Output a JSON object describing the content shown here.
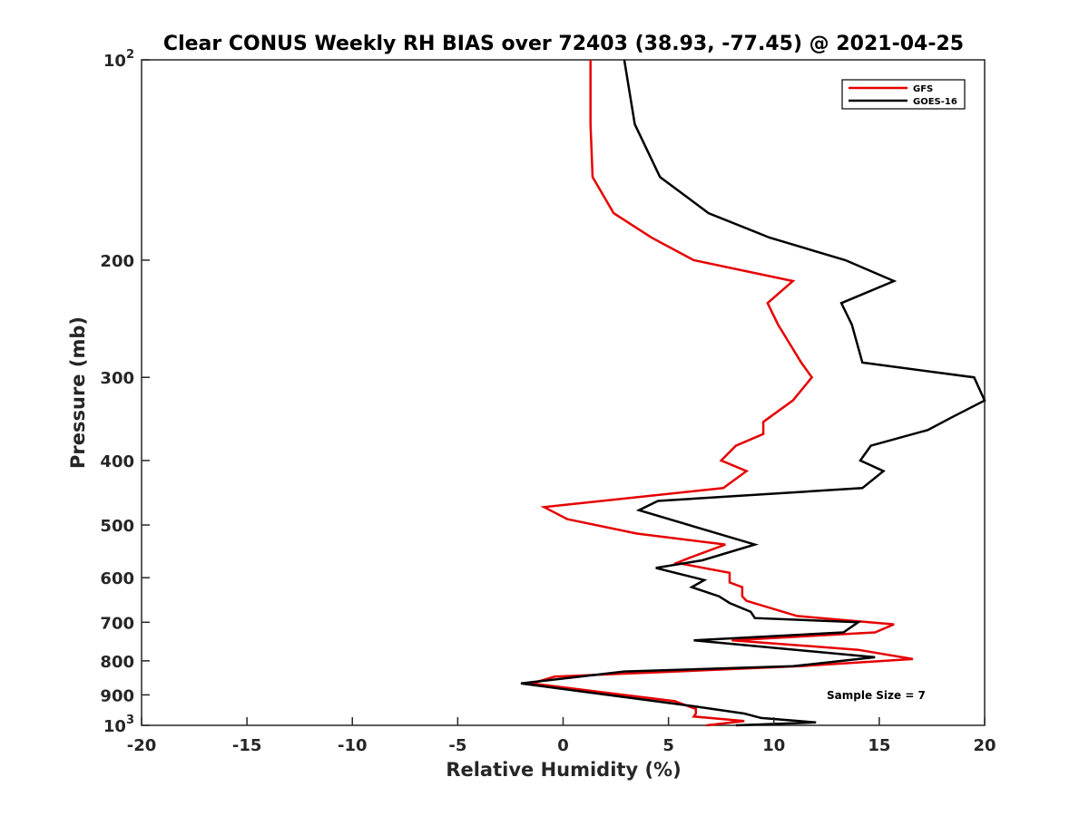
{
  "chart_data": {
    "type": "line",
    "title": "Clear CONUS Weekly RH BIAS over 72403 (38.93, -77.45) @ 2021-04-25",
    "xlabel": "Relative Humidity (%)",
    "ylabel": "Pressure (mb)",
    "xlim": [
      -20,
      20
    ],
    "ylim": [
      100,
      1000
    ],
    "y_scale": "log",
    "y_reversed": true,
    "grid": false,
    "legend_position": "top-right",
    "x_ticks": [
      -20,
      -15,
      -10,
      -5,
      0,
      5,
      10,
      15,
      20
    ],
    "x_tick_labels": [
      "-20",
      "-15",
      "-10",
      "-5",
      "0",
      "5",
      "10",
      "15",
      "20"
    ],
    "y_ticks": [
      100,
      200,
      300,
      400,
      500,
      600,
      700,
      800,
      900,
      1000
    ],
    "y_tick_labels": [
      {
        "base": "10",
        "exp": "2"
      },
      {
        "base": "200",
        "exp": ""
      },
      {
        "base": "300",
        "exp": ""
      },
      {
        "base": "400",
        "exp": ""
      },
      {
        "base": "500",
        "exp": ""
      },
      {
        "base": "600",
        "exp": ""
      },
      {
        "base": "700",
        "exp": ""
      },
      {
        "base": "800",
        "exp": ""
      },
      {
        "base": "900",
        "exp": ""
      },
      {
        "base": "10",
        "exp": "3"
      }
    ],
    "annotation": "Sample Size = 7",
    "series": [
      {
        "name": "GFS",
        "color": "#e60000",
        "points": [
          [
            1.3,
            100
          ],
          [
            1.3,
            125
          ],
          [
            1.4,
            150
          ],
          [
            2.4,
            170
          ],
          [
            4.2,
            185
          ],
          [
            6.2,
            200
          ],
          [
            10.9,
            215
          ],
          [
            9.7,
            232
          ],
          [
            10.2,
            250
          ],
          [
            11.3,
            285
          ],
          [
            11.8,
            300
          ],
          [
            10.9,
            325
          ],
          [
            9.5,
            350
          ],
          [
            9.5,
            365
          ],
          [
            8.2,
            380
          ],
          [
            7.5,
            400
          ],
          [
            8.7,
            415
          ],
          [
            7.6,
            440
          ],
          [
            -0.9,
            470
          ],
          [
            0.2,
            490
          ],
          [
            3.5,
            515
          ],
          [
            7.7,
            535
          ],
          [
            6.0,
            560
          ],
          [
            5.4,
            570
          ],
          [
            7.9,
            590
          ],
          [
            7.9,
            610
          ],
          [
            8.5,
            620
          ],
          [
            8.5,
            640
          ],
          [
            8.7,
            650
          ],
          [
            11.1,
            685
          ],
          [
            15.7,
            705
          ],
          [
            14.8,
            725
          ],
          [
            8.0,
            745
          ],
          [
            14.0,
            770
          ],
          [
            16.6,
            795
          ],
          [
            11.2,
            815
          ],
          [
            -0.4,
            845
          ],
          [
            -1.5,
            865
          ],
          [
            5.3,
            920
          ],
          [
            6.3,
            945
          ],
          [
            6.3,
            960
          ],
          [
            6.2,
            970
          ],
          [
            8.6,
            985
          ],
          [
            6.8,
            1000
          ]
        ]
      },
      {
        "name": "GOES-16",
        "color": "#000000",
        "points": [
          [
            2.9,
            100
          ],
          [
            3.4,
            125
          ],
          [
            4.6,
            150
          ],
          [
            6.9,
            170
          ],
          [
            9.8,
            185
          ],
          [
            13.4,
            200
          ],
          [
            15.7,
            215
          ],
          [
            13.2,
            232
          ],
          [
            13.7,
            250
          ],
          [
            14.2,
            285
          ],
          [
            19.5,
            300
          ],
          [
            20.0,
            325
          ],
          [
            18.4,
            345
          ],
          [
            17.3,
            360
          ],
          [
            14.6,
            380
          ],
          [
            14.1,
            400
          ],
          [
            15.2,
            415
          ],
          [
            14.2,
            440
          ],
          [
            4.5,
            460
          ],
          [
            3.6,
            475
          ],
          [
            9.1,
            535
          ],
          [
            6.6,
            565
          ],
          [
            4.4,
            580
          ],
          [
            6.7,
            605
          ],
          [
            6.1,
            620
          ],
          [
            7.4,
            640
          ],
          [
            7.9,
            655
          ],
          [
            8.9,
            675
          ],
          [
            9.1,
            690
          ],
          [
            14.0,
            700
          ],
          [
            13.3,
            725
          ],
          [
            6.2,
            745
          ],
          [
            14.8,
            790
          ],
          [
            10.9,
            815
          ],
          [
            2.9,
            830
          ],
          [
            -2.0,
            865
          ],
          [
            6.1,
            935
          ],
          [
            8.6,
            960
          ],
          [
            9.4,
            975
          ],
          [
            12.0,
            990
          ],
          [
            8.2,
            1000
          ]
        ]
      }
    ]
  }
}
